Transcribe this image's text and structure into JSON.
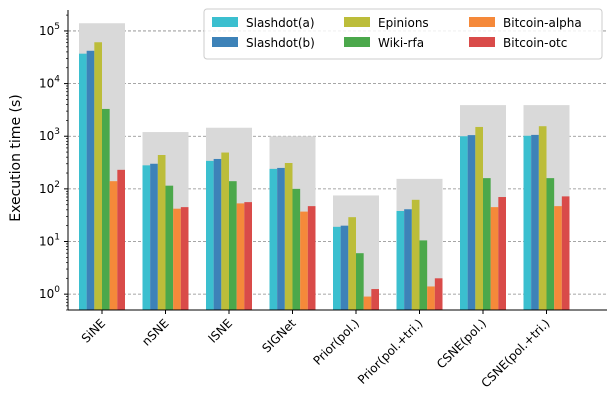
{
  "chart_data": {
    "type": "bar",
    "title": "",
    "xlabel": "",
    "ylabel": "Execution time (s)",
    "yscale": "log",
    "ylim": [
      0.5,
      250000
    ],
    "yticks": [
      {
        "value": 1,
        "base": "10",
        "exp": "0"
      },
      {
        "value": 10,
        "base": "10",
        "exp": "1"
      },
      {
        "value": 100,
        "base": "10",
        "exp": "2"
      },
      {
        "value": 1000,
        "base": "10",
        "exp": "3"
      },
      {
        "value": 10000,
        "base": "10",
        "exp": "4"
      },
      {
        "value": 100000,
        "base": "10",
        "exp": "5"
      }
    ],
    "grid": "horizontal dashed",
    "legend_position": "top-right",
    "categories": [
      "SiNE",
      "nSNE",
      "lSNE",
      "SIGNet",
      "Prior(pol.)",
      "Prior(pol.+tri.)",
      "CSNE(pol.)",
      "CSNE(pol.+tri.)"
    ],
    "category_totals": [
      140000,
      1200,
      1450,
      1000,
      75,
      155,
      3900,
      3900
    ],
    "series": [
      {
        "name": "Slashdot(a)",
        "color": "#3bbfcf",
        "values": [
          37000,
          280,
          340,
          240,
          19,
          38,
          1000,
          1020
        ]
      },
      {
        "name": "Slashdot(b)",
        "color": "#3d82b8",
        "values": [
          42000,
          300,
          370,
          250,
          20,
          41,
          1050,
          1060
        ]
      },
      {
        "name": "Epinions",
        "color": "#bcbd3a",
        "values": [
          61000,
          440,
          490,
          310,
          29,
          62,
          1500,
          1550
        ]
      },
      {
        "name": "Wiki-rfa",
        "color": "#4ba84b",
        "values": [
          3300,
          115,
          140,
          100,
          6,
          10.5,
          160,
          160
        ]
      },
      {
        "name": "Bitcoin-alpha",
        "color": "#f5893a",
        "values": [
          140,
          42,
          53,
          37,
          0.9,
          1.4,
          45,
          47
        ]
      },
      {
        "name": "Bitcoin-otc",
        "color": "#d94b49",
        "values": [
          230,
          45,
          56,
          47,
          1.25,
          2.0,
          70,
          72
        ]
      }
    ],
    "background_bar_color": "#d9d9d9"
  }
}
